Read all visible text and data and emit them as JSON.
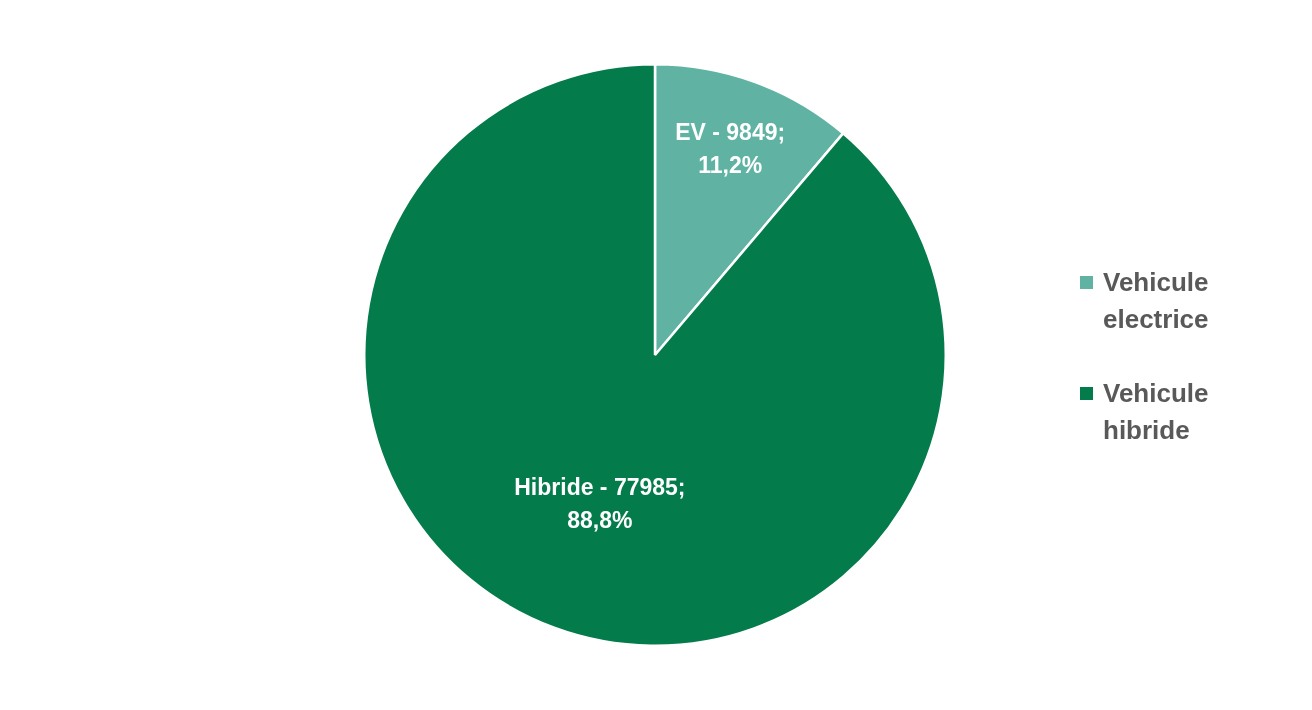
{
  "chart_data": {
    "type": "pie",
    "categories": [
      "Vehicule electrice",
      "Vehicule hibride"
    ],
    "values": [
      11.2,
      88.8
    ],
    "colors": [
      "#60b2a3",
      "#047b4b"
    ],
    "value_labels": [
      "EV - 9849; 11,2%",
      "Hibride - 77985; 88,8%"
    ],
    "legend": "right"
  }
}
